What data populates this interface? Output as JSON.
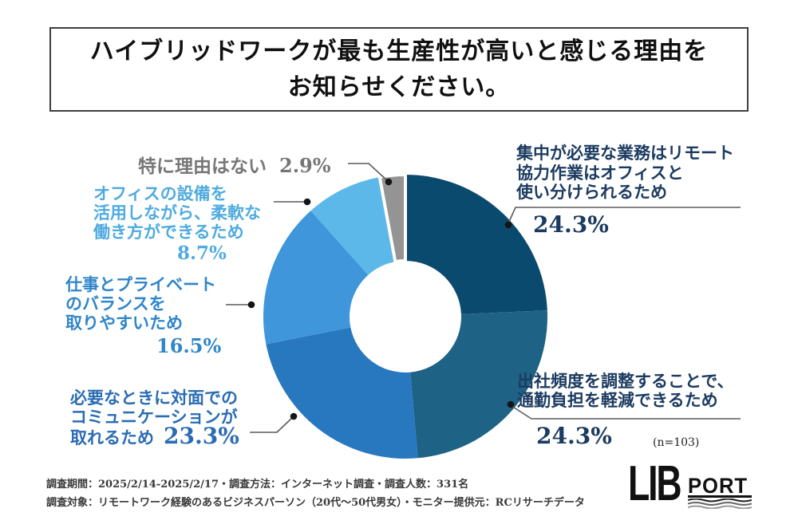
{
  "title": {
    "line1": "ハイブリッドワークが最も生産性が高いと感じる理由を",
    "line2": "お知らせください。"
  },
  "chart_data": {
    "type": "pie",
    "donut": true,
    "title": "ハイブリッドワークが最も生産性が高いと感じる理由をお知らせください。",
    "direction": "clockwise",
    "start_angle_deg": 0,
    "sample_note": "(n=103)",
    "labels": [
      "集中が必要な業務はリモート協力作業はオフィスと使い分けられるため",
      "出社頻度を調整することで、通勤負担を軽減できるため",
      "必要なときに対面でのコミュニケーションが取れるため",
      "仕事とプライベートのバランスを取りやすいため",
      "オフィスの設備を活用しながら、柔軟な働き方ができるため",
      "特に理由はない"
    ],
    "values": [
      24.3,
      24.3,
      23.3,
      16.5,
      8.7,
      2.9
    ],
    "segments": [
      {
        "label": "集中が必要な業務はリモート協力作業はオフィスと使い分けられるため",
        "value": 24.3,
        "color": "#0b4a6f"
      },
      {
        "label": "出社頻度を調整することで、通勤負担を軽減できるため",
        "value": 24.3,
        "color": "#1e6285"
      },
      {
        "label": "必要なときに対面でのコミュニケーションが取れるため",
        "value": 23.3,
        "color": "#2878c0"
      },
      {
        "label": "仕事とプライベートのバランスを取りやすいため",
        "value": 16.5,
        "color": "#3f96da"
      },
      {
        "label": "オフィスの設備を活用しながら、柔軟な働き方ができるため",
        "value": 8.7,
        "color": "#5cb8e9"
      },
      {
        "label": "特に理由はない",
        "value": 2.9,
        "color": "#949494",
        "separated": true
      }
    ]
  },
  "callouts": {
    "focus": {
      "lines": [
        "集中が必要な業務はリモート",
        "協力作業はオフィスと",
        "使い分けられるため"
      ],
      "pct": "24.3%",
      "color": "#1c3b60"
    },
    "commute": {
      "lines": [
        "出社頻度を調整することで、",
        "通勤負担を軽減できるため"
      ],
      "pct": "24.3%",
      "color": "#1c3b60"
    },
    "communication": {
      "lines": [
        "必要なときに対面での",
        "コミュニケーションが",
        "取れるため"
      ],
      "pct": "23.3%",
      "color": "#2a6cb4"
    },
    "balance": {
      "lines": [
        "仕事とプライベート",
        "のバランスを",
        "取りやすいため"
      ],
      "pct": "16.5%",
      "color": "#2f86c9"
    },
    "facilities": {
      "lines": [
        "オフィスの設備を",
        "活用しながら、柔軟な",
        "働き方ができるため"
      ],
      "pct": "8.7%",
      "color": "#4fabdf"
    },
    "no_reason": {
      "label": "特に理由はない",
      "pct": "2.9%",
      "color": "#767676"
    }
  },
  "sample_note": "(n=103)",
  "footer": {
    "line1": "調査期間：2025/2/14-2025/2/17・調査方法：インターネット調査・調査人数：331名",
    "line2": "調査対象：リモートワーク経験のあるビジネスパーソン（20代～50代男女）・モニター提供元：RCリサーチデータ"
  },
  "logo": {
    "lib": "LIB",
    "port": "PORT"
  }
}
